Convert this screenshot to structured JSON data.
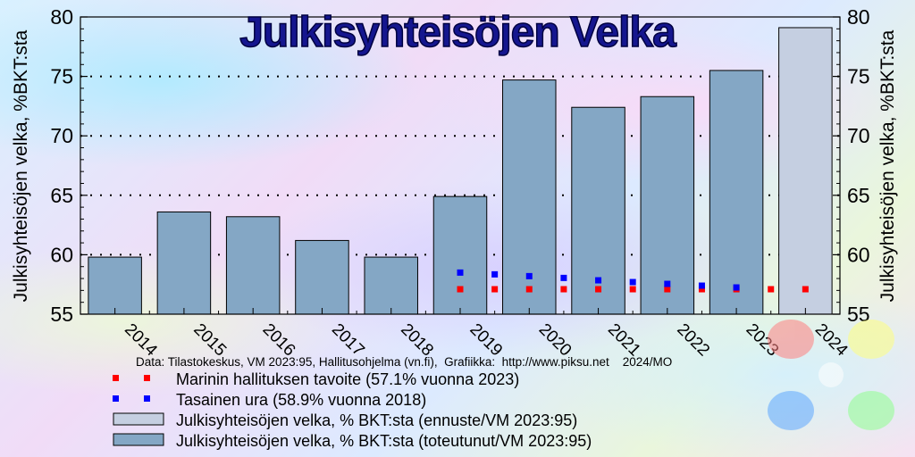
{
  "chart_data": {
    "type": "bar",
    "title": "Julkisyhteisöjen Velka",
    "ylabel": "Julkisyhteisöjen velka, %BKT:sta",
    "ylabel_right": "%BKT:sta",
    "ylim": [
      55,
      80
    ],
    "yticks": [
      "55",
      "60",
      "65",
      "70",
      "75",
      "80"
    ],
    "grid": true,
    "categories": [
      "2014",
      "2015",
      "2016",
      "2017",
      "2018",
      "2019",
      "2020",
      "2021",
      "2022",
      "2023",
      "2024"
    ],
    "series": [
      {
        "name": "Julkisyhteisöjen velka, % BKT:sta (toteutunut/VM 2023:95)",
        "kind": "bar",
        "color": "#84a7c5",
        "values": [
          59.8,
          63.6,
          63.2,
          61.2,
          59.8,
          64.9,
          74.7,
          72.4,
          73.3,
          75.5,
          null
        ]
      },
      {
        "name": "Julkisyhteisöjen velka, % BKT:sta (ennuste/VM 2023:95)",
        "kind": "bar",
        "color": "#c5cfe1",
        "values": [
          null,
          null,
          null,
          null,
          null,
          null,
          null,
          null,
          null,
          null,
          79.1
        ]
      },
      {
        "name": "Marinin hallituksen tavoite (57.1% vuonna 2023)",
        "kind": "dots",
        "color": "#ff0000",
        "points": [
          [
            2019,
            57.1
          ],
          [
            2019.5,
            57.1
          ],
          [
            2020,
            57.1
          ],
          [
            2020.5,
            57.1
          ],
          [
            2021,
            57.1
          ],
          [
            2021.5,
            57.1
          ],
          [
            2022,
            57.1
          ],
          [
            2022.5,
            57.1
          ],
          [
            2023,
            57.1
          ],
          [
            2023.5,
            57.1
          ],
          [
            2024,
            57.1
          ]
        ]
      },
      {
        "name": "Tasainen ura (58.9% vuonna 2018)",
        "kind": "dots",
        "color": "#0000ff",
        "points": [
          [
            2019,
            58.5
          ],
          [
            2019.5,
            58.35
          ],
          [
            2020,
            58.2
          ],
          [
            2020.5,
            58.05
          ],
          [
            2021,
            57.85
          ],
          [
            2021.5,
            57.7
          ],
          [
            2022,
            57.55
          ],
          [
            2022.5,
            57.4
          ],
          [
            2023,
            57.25
          ]
        ]
      }
    ],
    "legend": "bottom-left",
    "credit": "Data: Tilastokeskus, VM 2023:95, Hallitusohjelma (vn.fi),  Grafiikka:  http://www.piksu.net    2024/MO"
  }
}
